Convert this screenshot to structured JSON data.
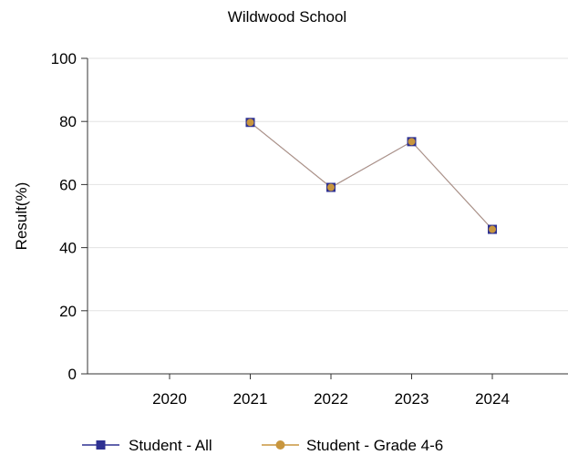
{
  "chart_data": {
    "type": "line",
    "title": "Wildwood School",
    "xlabel": "",
    "ylabel": "Result(%)",
    "categories": [
      "2020",
      "2021",
      "2022",
      "2023",
      "2024"
    ],
    "ylim": [
      0,
      100
    ],
    "yticks": [
      0,
      20,
      40,
      60,
      80,
      100
    ],
    "grid": true,
    "legend_position": "bottom",
    "series": [
      {
        "name": "Student - All",
        "color": "#2e3192",
        "marker": "square",
        "values": [
          null,
          79.7,
          59.1,
          73.6,
          45.8
        ]
      },
      {
        "name": "Student - Grade 4-6",
        "color": "#c8963e",
        "marker": "circle",
        "line_color": "#b89a82",
        "values": [
          null,
          79.7,
          59.1,
          73.6,
          45.8
        ]
      }
    ]
  }
}
